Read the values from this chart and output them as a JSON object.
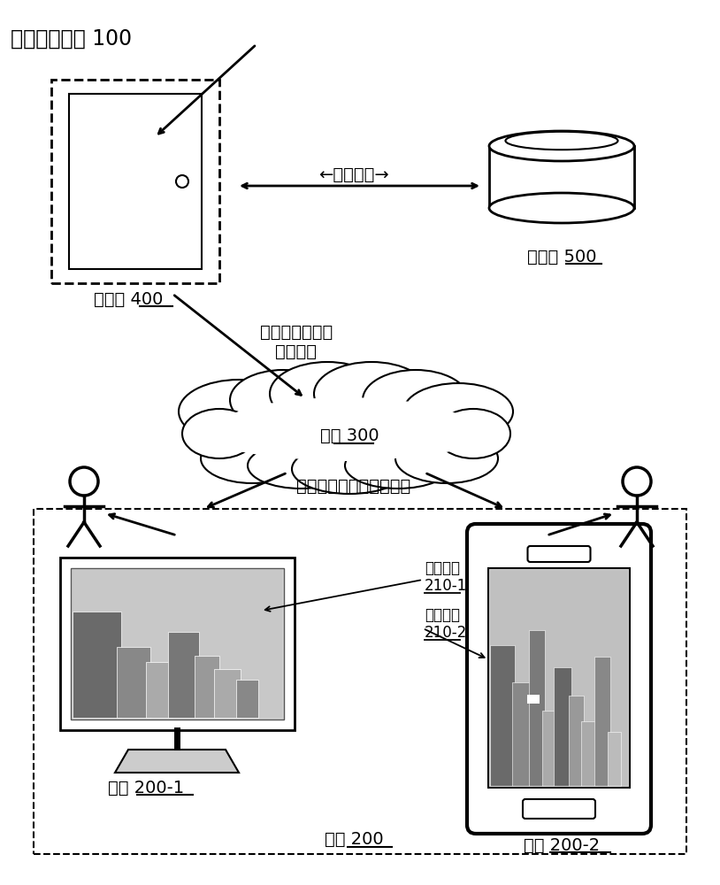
{
  "title": "模型展开系统 100",
  "bg_color": "#ffffff",
  "text_color": "#000000",
  "server_label": "服务器 400",
  "database_label": "数据库 500",
  "network_label": "网络 300",
  "data_support_label": "←数据支持→",
  "model_request_label1": "模型展开请求、",
  "model_request_label2": "展开结果",
  "model_request_label3": "模型展开请求、展开结果",
  "terminal_200_label": "终端 200",
  "terminal_2001_label": "终端 200-1",
  "terminal_2002_label": "终端 200-2",
  "gui_label1": "图形界面",
  "gui_label2": "210-1",
  "gui_label3": "图形界面",
  "gui_label4": "210-2",
  "font_size_title": 17,
  "font_size_label": 14,
  "font_size_small": 12
}
